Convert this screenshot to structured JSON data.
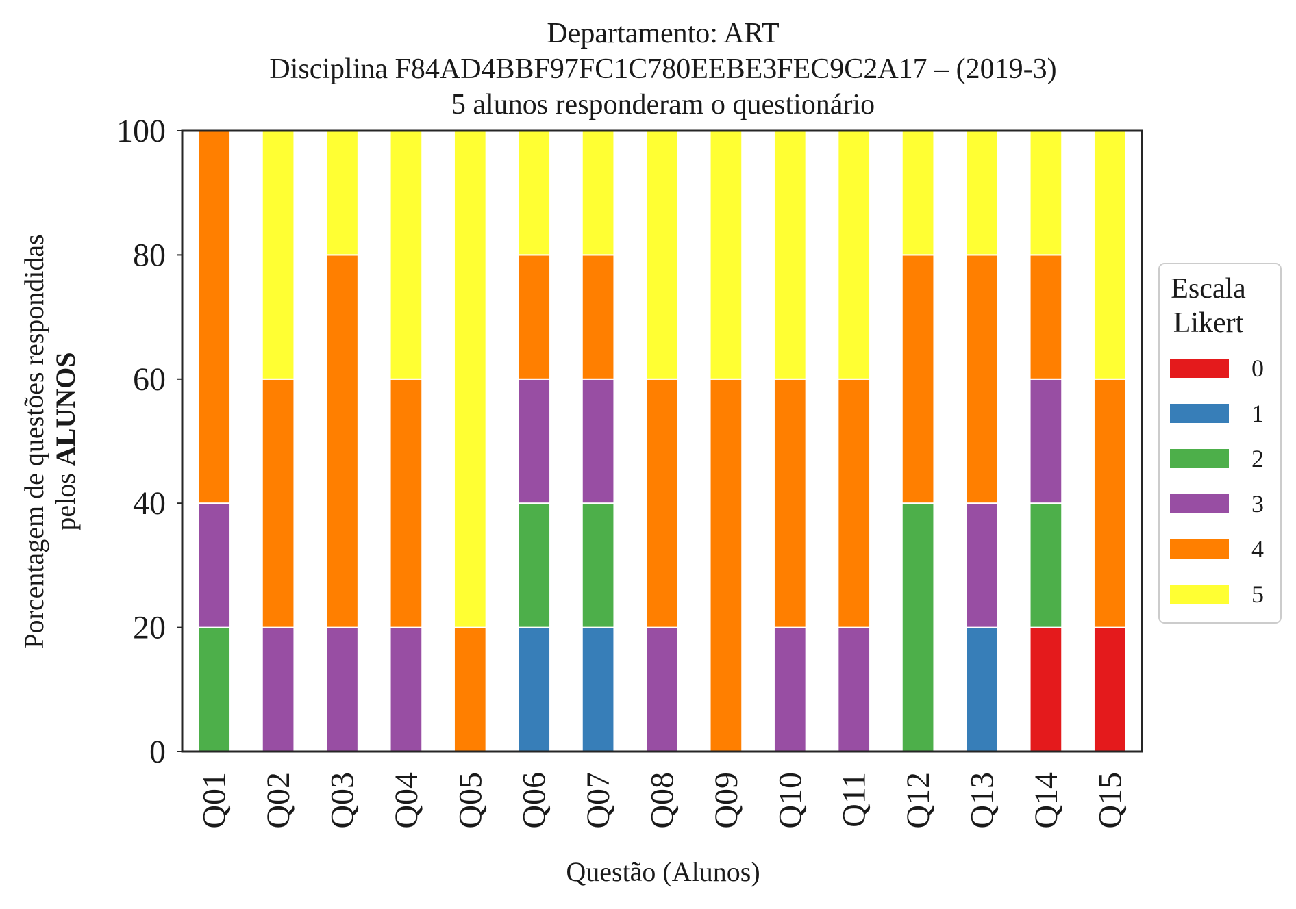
{
  "chart_data": {
    "type": "bar",
    "stacked": true,
    "title_lines": [
      "Departamento: ART",
      "Disciplina F84AD4BBF97FC1C780EEBE3FEC9C2A17 – (2019-3)",
      "5 alunos responderam o questionário"
    ],
    "xlabel": "Questão (Alunos)",
    "ylabel_line1": "Porcentagem de questões respondidas",
    "ylabel_line2_prefix": "pelos ",
    "ylabel_line2_bold": "ALUNOS",
    "ylim": [
      0,
      100
    ],
    "yticks": [
      "0",
      "20",
      "40",
      "60",
      "80",
      "100"
    ],
    "grid": false,
    "legend_placement": "right",
    "legend_title_lines": [
      "Escala",
      "Likert"
    ],
    "categories": [
      "Q01",
      "Q02",
      "Q03",
      "Q04",
      "Q05",
      "Q06",
      "Q07",
      "Q08",
      "Q09",
      "Q10",
      "Q11",
      "Q12",
      "Q13",
      "Q14",
      "Q15"
    ],
    "series": [
      {
        "name": "0",
        "color": "#e41a1c",
        "values": [
          0,
          0,
          0,
          0,
          0,
          0,
          0,
          0,
          0,
          0,
          0,
          0,
          0,
          20,
          20
        ]
      },
      {
        "name": "1",
        "color": "#377eb8",
        "values": [
          0,
          0,
          0,
          0,
          0,
          20,
          20,
          0,
          0,
          0,
          0,
          0,
          20,
          0,
          0
        ]
      },
      {
        "name": "2",
        "color": "#4daf4a",
        "values": [
          20,
          0,
          0,
          0,
          0,
          20,
          20,
          0,
          0,
          0,
          0,
          40,
          0,
          20,
          0
        ]
      },
      {
        "name": "3",
        "color": "#984ea3",
        "values": [
          20,
          20,
          20,
          20,
          0,
          20,
          20,
          20,
          0,
          20,
          20,
          0,
          20,
          20,
          0
        ]
      },
      {
        "name": "4",
        "color": "#ff7f00",
        "values": [
          60,
          40,
          60,
          40,
          20,
          20,
          20,
          40,
          60,
          40,
          40,
          40,
          40,
          20,
          40
        ]
      },
      {
        "name": "5",
        "color": "#ffff33",
        "values": [
          0,
          40,
          20,
          40,
          80,
          20,
          20,
          40,
          40,
          40,
          40,
          20,
          20,
          20,
          40
        ]
      }
    ]
  }
}
